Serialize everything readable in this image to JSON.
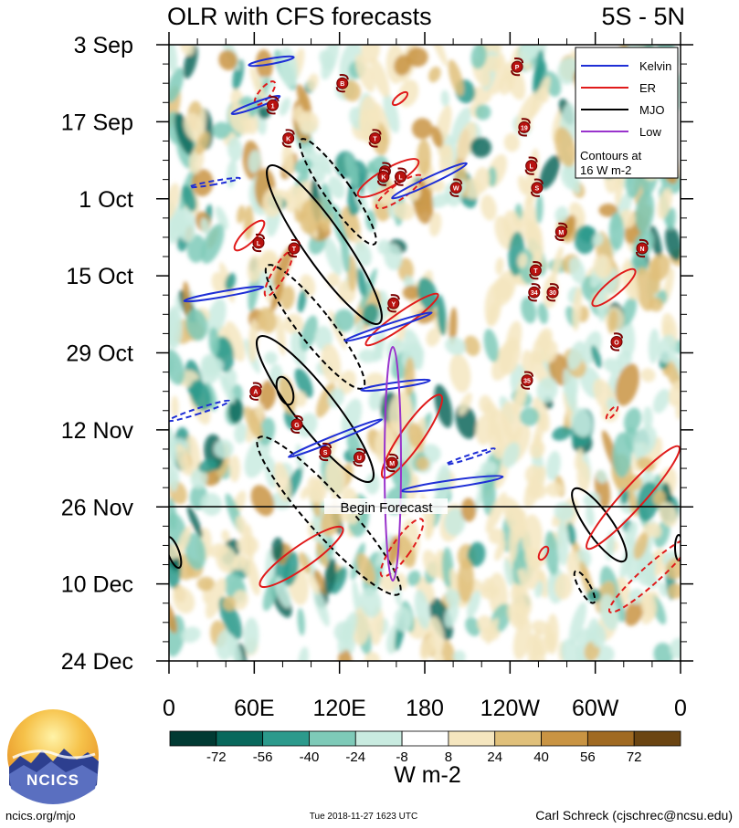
{
  "chart_data": {
    "type": "heatmap",
    "title_left": "OLR with CFS forecasts",
    "title_right": "5S - 5N",
    "y_ticks": [
      "3 Sep",
      "17 Sep",
      "1 Oct",
      "15 Oct",
      "29 Oct",
      "12 Nov",
      "26 Nov",
      "10 Dec",
      "24 Dec"
    ],
    "x_ticks": [
      "0",
      "60E",
      "120E",
      "180",
      "120W",
      "60W",
      "0"
    ],
    "x_range": [
      0,
      360
    ],
    "y_range": [
      "3 Sep",
      "24 Dec"
    ],
    "forecast_date": "26 Nov",
    "forecast_label": "Begin Forecast",
    "legend": {
      "entries": [
        {
          "name": "Kelvin",
          "color": "#1f2fd6"
        },
        {
          "name": "ER",
          "color": "#e01b1b"
        },
        {
          "name": "MJO",
          "color": "#000000"
        },
        {
          "name": "Low",
          "color": "#9933cc"
        }
      ],
      "note": [
        "Contours at",
        "16 W m-2"
      ],
      "placement": "top-right"
    },
    "colorbar": {
      "labels": [
        "-72",
        "-56",
        "-40",
        "-24",
        "-8",
        "8",
        "24",
        "40",
        "56",
        "72"
      ],
      "unit": "W m-2",
      "colors": [
        "#013a33",
        "#08685c",
        "#2c9a8c",
        "#7ecab8",
        "#c9ebe0",
        "#ffffff",
        "#f5e6bf",
        "#e0c07a",
        "#c99443",
        "#a06a22",
        "#6b4512"
      ]
    },
    "storms": [
      {
        "label": "B",
        "lon": 122,
        "date": "Sep 10"
      },
      {
        "label": "1",
        "lon": 73,
        "date": "Sep 14"
      },
      {
        "label": "K",
        "lon": 84,
        "date": "Sep 20"
      },
      {
        "label": "T",
        "lon": 145,
        "date": "Sep 20"
      },
      {
        "label": "P",
        "lon": 245,
        "date": "Sep 7"
      },
      {
        "label": "19",
        "lon": 250,
        "date": "Sep 18"
      },
      {
        "label": "L",
        "lon": 255,
        "date": "Sep 25"
      },
      {
        "label": "S",
        "lon": 259,
        "date": "Sep 29"
      },
      {
        "label": "M",
        "lon": 276,
        "date": "Oct 7"
      },
      {
        "label": "N",
        "lon": 333,
        "date": "Oct 10"
      },
      {
        "label": "T",
        "lon": 258,
        "date": "Oct 14"
      },
      {
        "label": "34",
        "lon": 257,
        "date": "Oct 18"
      },
      {
        "label": "30",
        "lon": 270,
        "date": "Oct 18"
      },
      {
        "label": "O",
        "lon": 315,
        "date": "Oct 27"
      },
      {
        "label": "35",
        "lon": 252,
        "date": "Nov 3"
      },
      {
        "label": "L",
        "lon": 63,
        "date": "Oct 9"
      },
      {
        "label": "T",
        "lon": 88,
        "date": "Oct 10"
      },
      {
        "label": "Y",
        "lon": 158,
        "date": "Oct 20"
      },
      {
        "label": "A",
        "lon": 61,
        "date": "Nov 5"
      },
      {
        "label": "G",
        "lon": 90,
        "date": "Nov 11"
      },
      {
        "label": "S",
        "lon": 110,
        "date": "Nov 16"
      },
      {
        "label": "U",
        "lon": 134,
        "date": "Nov 17"
      },
      {
        "label": "M",
        "lon": 157,
        "date": "Nov 18"
      },
      {
        "label": "28",
        "lon": 152,
        "date": "Sep 26"
      },
      {
        "label": "L",
        "lon": 163,
        "date": "Sep 27"
      },
      {
        "label": "K",
        "lon": 151,
        "date": "Sep 27"
      },
      {
        "label": "W",
        "lon": 202,
        "date": "Sep 29"
      }
    ]
  },
  "footer": {
    "left": "ncics.org/mjo",
    "center": "Tue 2018-11-27 1623 UTC",
    "right": "Carl Schreck (cjschrec@ncsu.edu)"
  },
  "logo": {
    "text": "NCICS"
  }
}
